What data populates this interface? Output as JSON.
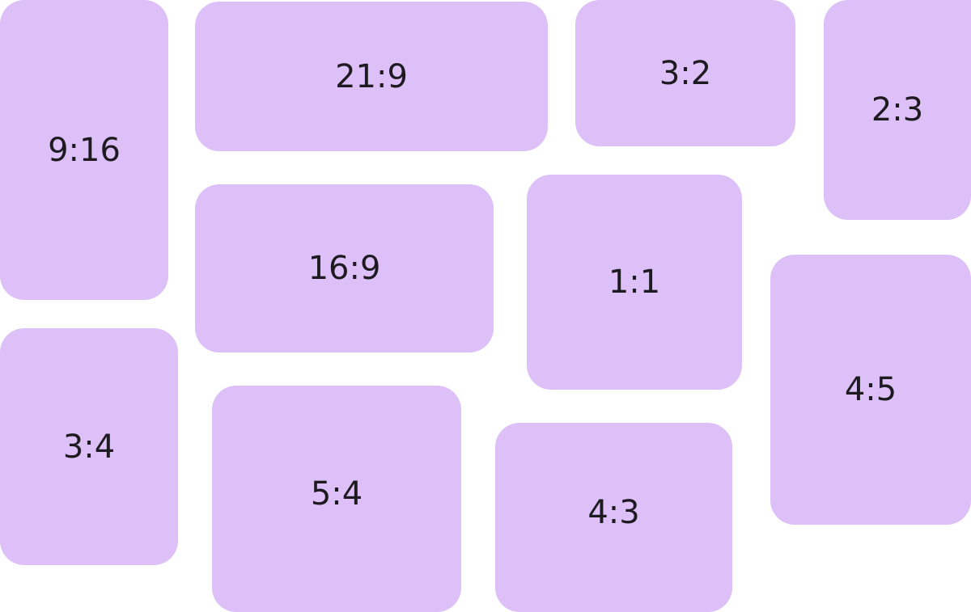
{
  "tile_color": "#dcc0f7",
  "text_color": "#1d1b20",
  "tiles": [
    {
      "label": "9:16"
    },
    {
      "label": "21:9"
    },
    {
      "label": "3:2"
    },
    {
      "label": "2:3"
    },
    {
      "label": "16:9"
    },
    {
      "label": "1:1"
    },
    {
      "label": "4:5"
    },
    {
      "label": "3:4"
    },
    {
      "label": "5:4"
    },
    {
      "label": "4:3"
    }
  ]
}
